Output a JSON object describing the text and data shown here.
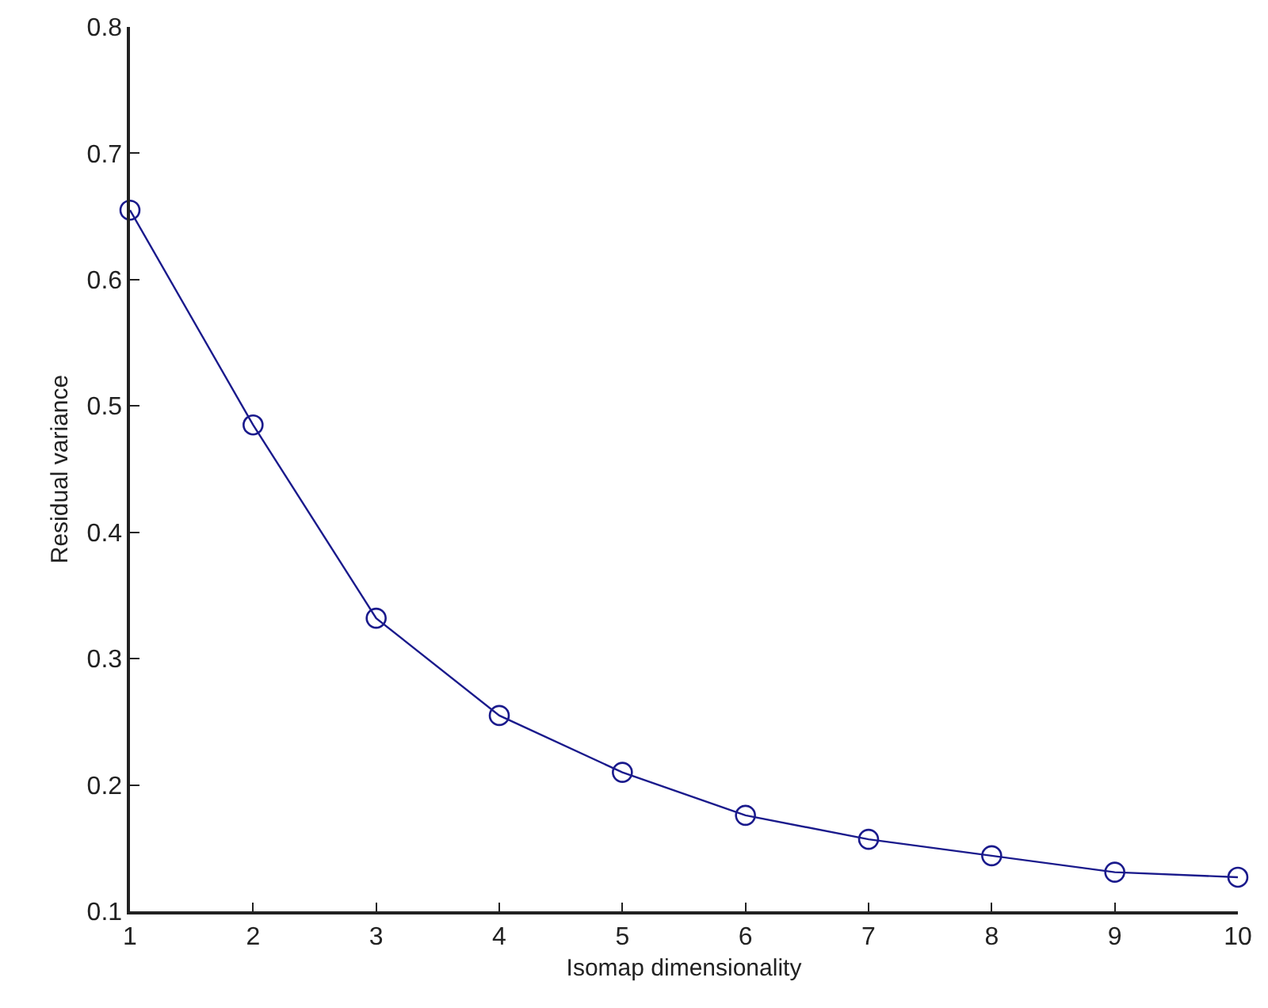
{
  "chart_data": {
    "type": "line",
    "xlabel": "Isomap dimensionality",
    "ylabel": "Residual variance",
    "x": [
      1,
      2,
      3,
      4,
      5,
      6,
      7,
      8,
      9,
      10
    ],
    "series": [
      {
        "color": "#1a1a8c",
        "values": [
          0.655,
          0.485,
          0.332,
          0.255,
          0.21,
          0.176,
          0.157,
          0.144,
          0.131,
          0.127
        ]
      }
    ],
    "xlim": [
      1,
      10
    ],
    "xticks": [
      1,
      2,
      3,
      4,
      5,
      6,
      7,
      8,
      9,
      10
    ],
    "ylim": [
      0.1,
      0.8
    ],
    "yticks": [
      0.1,
      0.2,
      0.3,
      0.4,
      0.5,
      0.6,
      0.7,
      0.8
    ],
    "marker": "circle",
    "line_style": "solid"
  }
}
